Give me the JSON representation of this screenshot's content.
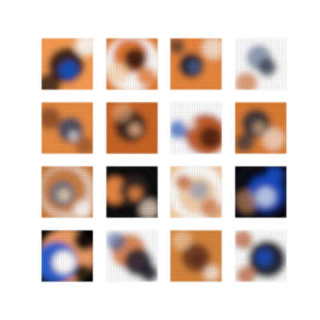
{
  "grid": {
    "rows": 4,
    "cols": 4,
    "tiles": [
      {
        "row": 0,
        "col": 0,
        "description_name": "sample-01",
        "palette": [
          "#f0a060",
          "#2a1a18",
          "#1f4fa8",
          "#ffffff"
        ]
      },
      {
        "row": 0,
        "col": 1,
        "description_name": "sample-02",
        "palette": [
          "#d97a3a",
          "#3a1e14",
          "#f5d8b8",
          "#ffffff"
        ]
      },
      {
        "row": 0,
        "col": 2,
        "description_name": "sample-03",
        "palette": [
          "#e08a4a",
          "#1e2230",
          "#4a5a80",
          "#f4e4d4"
        ]
      },
      {
        "row": 0,
        "col": 3,
        "description_name": "sample-04",
        "palette": [
          "#ffffff",
          "#7a8aa0",
          "#c87a48",
          "#3a4050"
        ]
      },
      {
        "row": 1,
        "col": 0,
        "description_name": "sample-05",
        "palette": [
          "#e09050",
          "#404a60",
          "#ffffff",
          "#8a5030"
        ]
      },
      {
        "row": 1,
        "col": 1,
        "description_name": "sample-06",
        "palette": [
          "#c06830",
          "#2a2020",
          "#e8b890",
          "#3060c0"
        ]
      },
      {
        "row": 1,
        "col": 2,
        "description_name": "sample-07",
        "palette": [
          "#ffffff",
          "#b05020",
          "#3a1810",
          "#6080c0"
        ]
      },
      {
        "row": 1,
        "col": 3,
        "description_name": "sample-08",
        "palette": [
          "#d48040",
          "#30303a",
          "#f0c8a0",
          "#ffffff"
        ]
      },
      {
        "row": 2,
        "col": 0,
        "description_name": "sample-09",
        "palette": [
          "#c07840",
          "#6a7080",
          "#f0d8c0",
          "#ffffff"
        ]
      },
      {
        "row": 2,
        "col": 1,
        "description_name": "sample-10",
        "palette": [
          "#101010",
          "#e08a50",
          "#3a2a28",
          "#f4e0d0"
        ]
      },
      {
        "row": 2,
        "col": 2,
        "description_name": "sample-11",
        "palette": [
          "#f0c8a0",
          "#8090b0",
          "#ffffff",
          "#c07040"
        ]
      },
      {
        "row": 2,
        "col": 3,
        "description_name": "sample-12",
        "palette": [
          "#0a0a14",
          "#2050c0",
          "#e0a070",
          "#ffffff"
        ]
      },
      {
        "row": 3,
        "col": 0,
        "description_name": "sample-13",
        "palette": [
          "#000000",
          "#3060c0",
          "#e8a070",
          "#ffffff"
        ]
      },
      {
        "row": 3,
        "col": 1,
        "description_name": "sample-14",
        "palette": [
          "#ffffff",
          "#4060a0",
          "#d08050",
          "#2a2430"
        ]
      },
      {
        "row": 3,
        "col": 2,
        "description_name": "sample-15",
        "palette": [
          "#d08848",
          "#5a3020",
          "#f0d0b0",
          "#ffffff"
        ]
      },
      {
        "row": 3,
        "col": 3,
        "description_name": "sample-16",
        "palette": [
          "#ffffff",
          "#1a2030",
          "#2050b0",
          "#c08060"
        ]
      }
    ]
  }
}
